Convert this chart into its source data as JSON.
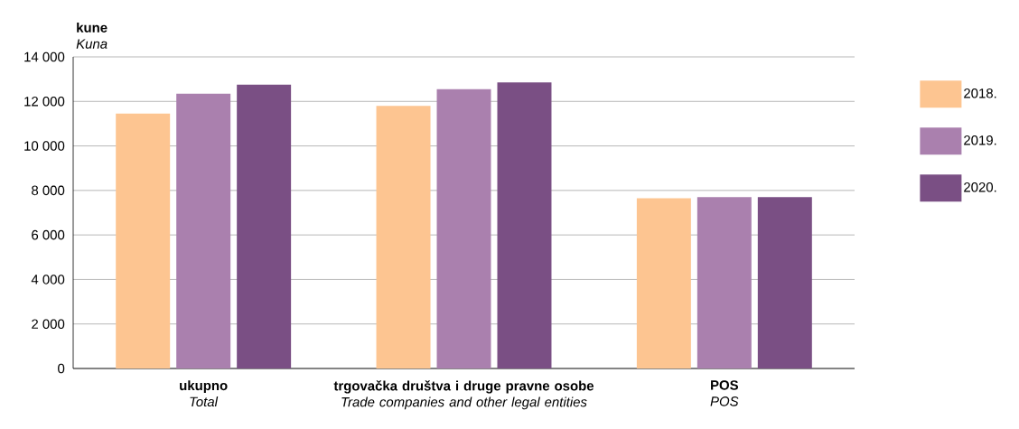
{
  "chart_data": {
    "type": "bar",
    "ylabel": "**kune**\n*Kuna*",
    "categories": [
      "**ukupno**\n*Total*",
      "**trgovačka društva i druge pravne osobe**\n*Trade companies and other legal entities*",
      "**POS**\n*POS*"
    ],
    "series": [
      {
        "name": "2018.",
        "color": "#fdc591",
        "values": [
          11450,
          11800,
          7650
        ]
      },
      {
        "name": "2019.",
        "color": "#aa80ae",
        "values": [
          12350,
          12550,
          7700
        ]
      },
      {
        "name": "2020.",
        "color": "#7a4f84",
        "values": [
          12750,
          12850,
          7700
        ]
      }
    ],
    "ylim": [
      0,
      14000
    ],
    "yticks": [
      {
        "value": 0,
        "label": "0"
      },
      {
        "value": 2000,
        "label": "2 000"
      },
      {
        "value": 4000,
        "label": "4 000"
      },
      {
        "value": 6000,
        "label": "6 000"
      },
      {
        "value": 8000,
        "label": "8 000"
      },
      {
        "value": 10000,
        "label": "10 000"
      },
      {
        "value": 12000,
        "label": "12 000"
      },
      {
        "value": 14000,
        "label": "14 000"
      }
    ],
    "grid": "y",
    "legend": "right"
  }
}
